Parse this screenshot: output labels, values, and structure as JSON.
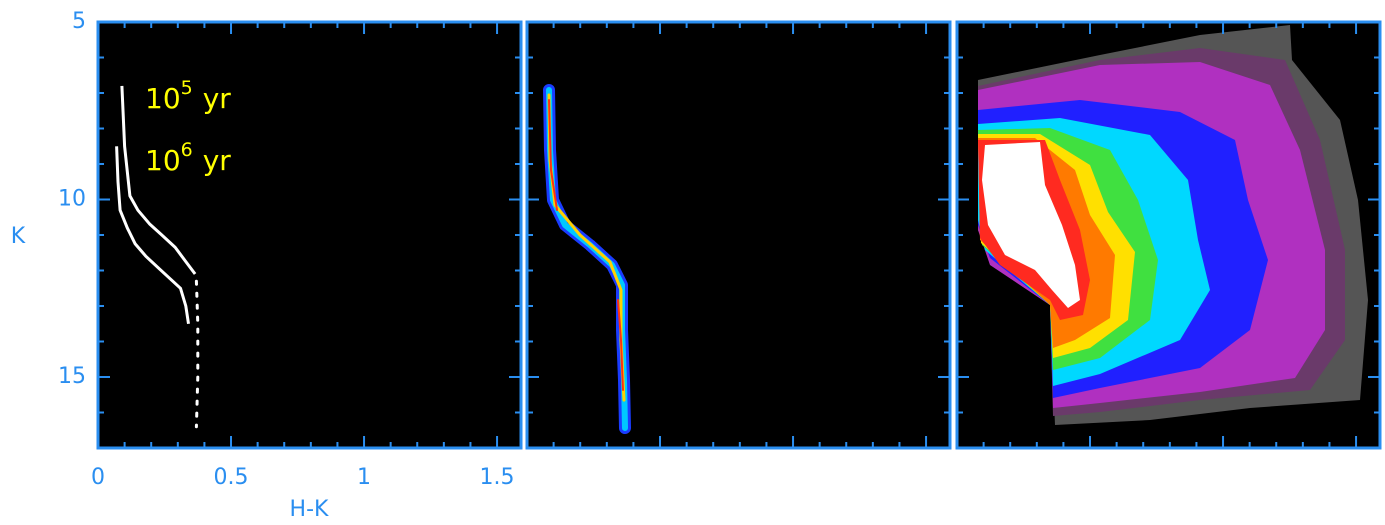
{
  "chart_data": {
    "type": "line",
    "xlabel": "H-K",
    "ylabel": "K",
    "xlim": [
      0,
      1.59
    ],
    "ylim": [
      17,
      5
    ],
    "xticks": [
      0,
      0.5,
      1,
      1.5
    ],
    "yticks": [
      5,
      10,
      15
    ],
    "minor_per_major": 5,
    "axis_color": "#2a8ef0",
    "series": [
      {
        "color": "#ffffff",
        "dash": "solid",
        "x": [
          0.09,
          0.1,
          0.12,
          0.15,
          0.195,
          0.24,
          0.29,
          0.33,
          0.365
        ],
        "values": [
          6.8,
          8.5,
          9.9,
          10.3,
          10.7,
          11.0,
          11.35,
          11.75,
          12.1
        ]
      },
      {
        "color": "#ffffff",
        "dash": "solid",
        "x": [
          0.07,
          0.075,
          0.083,
          0.11,
          0.14,
          0.18,
          0.23,
          0.31,
          0.33,
          0.34
        ],
        "values": [
          8.5,
          9.5,
          10.3,
          10.8,
          11.25,
          11.6,
          11.95,
          12.5,
          13.0,
          13.5
        ]
      },
      {
        "color": "#ffffff",
        "dash": "dotted",
        "x": [
          0.37,
          0.375,
          0.375,
          0.37
        ],
        "values": [
          12.3,
          13.5,
          15.0,
          16.4
        ]
      }
    ],
    "annotations": [
      {
        "base": "10",
        "exponent": "5",
        "unit": "yr",
        "color": "#ffff00"
      },
      {
        "base": "10",
        "exponent": "6",
        "unit": "yr",
        "color": "#ffff00"
      }
    ]
  }
}
